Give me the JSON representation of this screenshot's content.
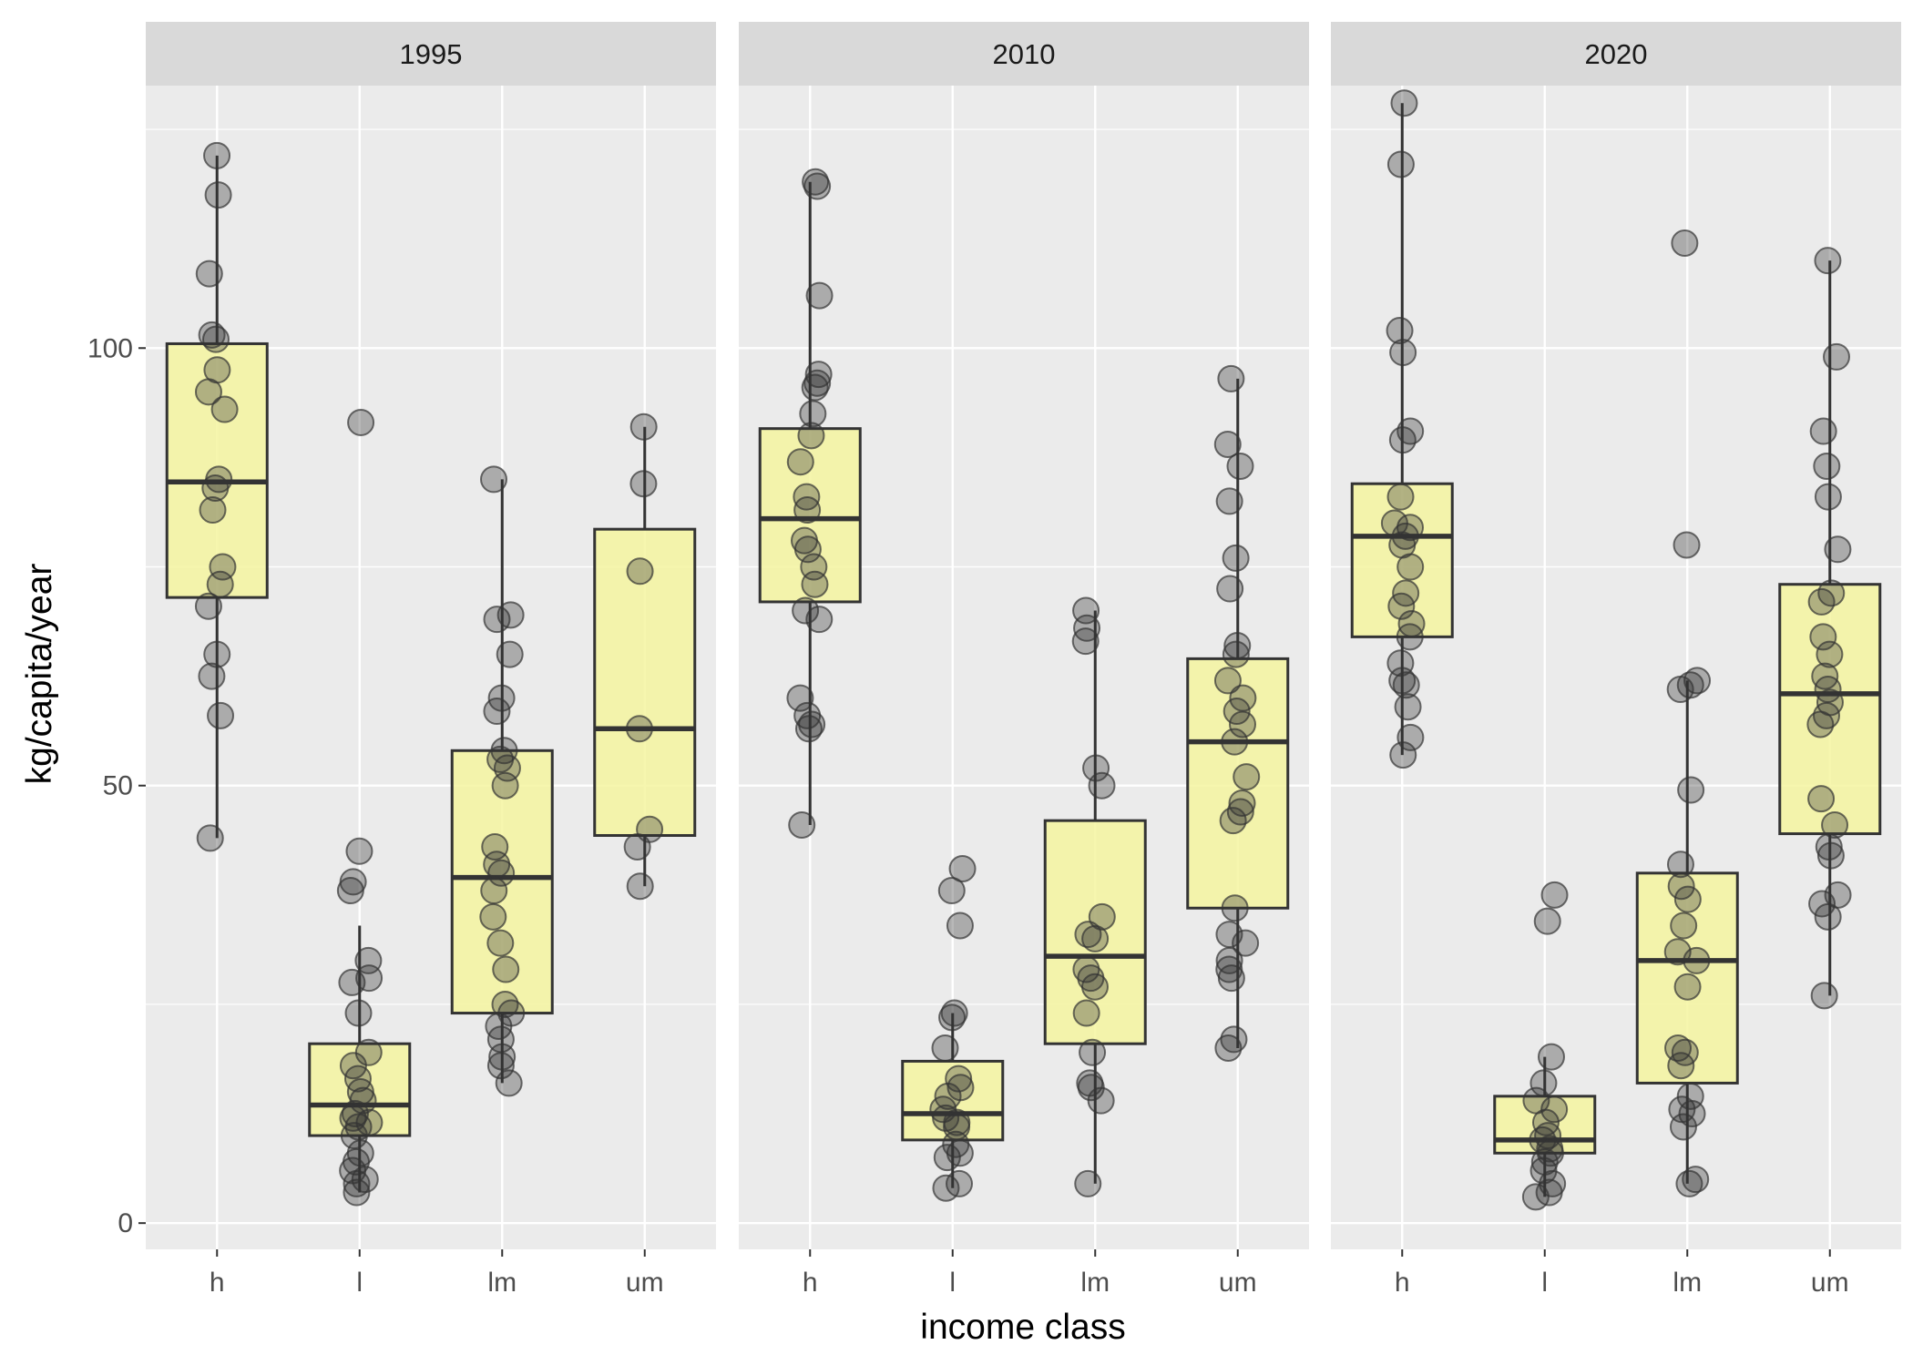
{
  "chart_data": {
    "type": "boxplot",
    "facet_by": "year",
    "xlabel": "income class",
    "ylabel": "kg/capita/year",
    "y_ticks": [
      0,
      50,
      100
    ],
    "ylim": [
      -3,
      130
    ],
    "grid": true,
    "categories": [
      "h",
      "l",
      "lm",
      "um"
    ],
    "colors": {
      "panel_bg": "#ebebeb",
      "strip_bg": "#d9d9d9",
      "grid": "#ffffff",
      "box_fill": "#f5f5a0",
      "box_stroke": "#333333",
      "point_fill": "#333333"
    },
    "panels": [
      {
        "label": "1995",
        "groups": [
          {
            "category": "h",
            "box": {
              "q1": 71.5,
              "median": 84.7,
              "q3": 100.5,
              "whisker_low": 44,
              "whisker_high": 122
            },
            "points": [
              122,
              117.5,
              108.5,
              101.5,
              101,
              97.5,
              95,
              93,
              85,
              84,
              81.5,
              75,
              73,
              70.5,
              65,
              62.5,
              58,
              44
            ]
          },
          {
            "category": "l",
            "box": {
              "q1": 10,
              "median": 13.5,
              "q3": 20.5,
              "whisker_low": 3.5,
              "whisker_high": 34
            },
            "points": [
              91.5,
              42.5,
              39,
              38,
              30,
              28,
              27.5,
              24,
              19.5,
              18,
              16.5,
              15,
              14,
              12.5,
              12,
              11.5,
              11,
              10,
              8,
              7,
              6,
              5,
              4.5,
              3.5
            ]
          },
          {
            "category": "lm",
            "box": {
              "q1": 24,
              "median": 39.5,
              "q3": 54,
              "whisker_low": 16,
              "whisker_high": 85
            },
            "points": [
              85,
              69.5,
              69,
              65,
              60,
              58.5,
              54,
              53,
              52,
              50,
              43,
              41,
              40,
              38,
              35,
              32,
              29,
              25,
              24,
              22.5,
              21,
              19,
              18,
              16
            ]
          },
          {
            "category": "um",
            "box": {
              "q1": 44.3,
              "median": 56.5,
              "q3": 79.3,
              "whisker_low": 38.5,
              "whisker_high": 91
            },
            "points": [
              91,
              84.5,
              74.5,
              56.5,
              45,
              43,
              38.5
            ]
          }
        ]
      },
      {
        "label": "2010",
        "groups": [
          {
            "category": "h",
            "box": {
              "q1": 71,
              "median": 80.5,
              "q3": 90.8,
              "whisker_low": 45.5,
              "whisker_high": 119
            },
            "points": [
              119,
              118.5,
              106,
              97,
              96,
              95.5,
              92.5,
              90,
              87,
              83,
              81.5,
              78,
              77,
              75,
              73,
              70,
              69,
              60,
              58,
              57,
              56.5,
              45.5
            ]
          },
          {
            "category": "l",
            "box": {
              "q1": 9.5,
              "median": 12.5,
              "q3": 18.5,
              "whisker_low": 4,
              "whisker_high": 24
            },
            "points": [
              40.5,
              38,
              34,
              24,
              23.5,
              20,
              16.5,
              15.5,
              14.5,
              13,
              12,
              11.5,
              11,
              9,
              8,
              7.5,
              4.5,
              4
            ]
          },
          {
            "category": "lm",
            "box": {
              "q1": 20.5,
              "median": 30.5,
              "q3": 46,
              "whisker_low": 4.5,
              "whisker_high": 70
            },
            "points": [
              70,
              68,
              66.5,
              52,
              50,
              35,
              33,
              32.5,
              29,
              28,
              27,
              24,
              19.5,
              16,
              15.5,
              14,
              4.5
            ]
          },
          {
            "category": "um",
            "box": {
              "q1": 36,
              "median": 55,
              "q3": 64.5,
              "whisker_low": 20,
              "whisker_high": 96.5
            },
            "points": [
              96.5,
              89,
              86.5,
              82.5,
              76,
              72.5,
              66,
              65,
              62,
              60,
              58.5,
              57,
              55,
              51,
              48,
              47,
              46,
              36,
              33,
              32,
              30,
              29,
              28,
              21,
              20
            ]
          }
        ]
      },
      {
        "label": "2020",
        "groups": [
          {
            "category": "h",
            "box": {
              "q1": 67,
              "median": 78.5,
              "q3": 84.5,
              "whisker_low": 53.5,
              "whisker_high": 128
            },
            "points": [
              128,
              121,
              102,
              99.5,
              90.5,
              89.5,
              83,
              80,
              79.5,
              78.5,
              77.5,
              75,
              72,
              70.5,
              68.5,
              67,
              64,
              62,
              61.5,
              59,
              55.5,
              53.5
            ]
          },
          {
            "category": "l",
            "box": {
              "q1": 8,
              "median": 9.5,
              "q3": 14.5,
              "whisker_low": 3,
              "whisker_high": 19
            },
            "points": [
              37.5,
              34.5,
              19,
              16,
              14,
              13,
              11.5,
              10,
              9.5,
              8.5,
              8,
              7,
              6,
              4.5,
              3.5,
              3
            ]
          },
          {
            "category": "lm",
            "box": {
              "q1": 16,
              "median": 30,
              "q3": 40,
              "whisker_low": 4.5,
              "whisker_high": 62
            },
            "points": [
              112,
              77.5,
              62,
              61.5,
              61,
              49.5,
              41,
              38.5,
              37,
              34,
              31,
              30,
              27,
              20,
              19.5,
              18,
              14.5,
              13,
              12.5,
              11,
              5,
              4.5
            ]
          },
          {
            "category": "um",
            "box": {
              "q1": 44.5,
              "median": 60.5,
              "q3": 73,
              "whisker_low": 26,
              "whisker_high": 110
            },
            "points": [
              110,
              99,
              90.5,
              86.5,
              83,
              77,
              72,
              71,
              67,
              65,
              62.5,
              61,
              59.5,
              58,
              57,
              48.5,
              45.5,
              43,
              42,
              37.5,
              36.5,
              35,
              26
            ]
          }
        ]
      }
    ]
  }
}
